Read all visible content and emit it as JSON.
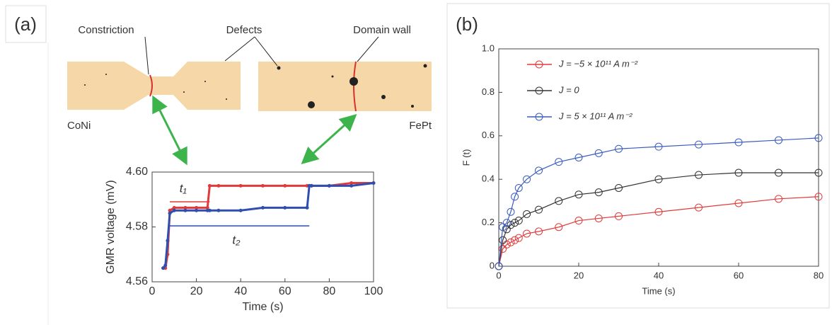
{
  "panels": {
    "a": "(a)",
    "b": "(b)"
  },
  "diagram": {
    "constriction": "Constriction",
    "defects": "Defects",
    "domain_wall": "Domain wall",
    "left_material": "CoNi",
    "right_material": "FePt"
  },
  "chart_data": [
    {
      "type": "line",
      "xlabel": "Time (s)",
      "ylabel": "GMR voltage (mV)",
      "x": [
        5,
        6,
        7,
        8,
        10,
        15,
        20,
        25,
        26,
        30,
        40,
        50,
        60,
        70,
        71,
        72,
        80,
        90,
        100
      ],
      "series": [
        {
          "color": "#e23a3a",
          "values": [
            4.565,
            4.565,
            4.57,
            4.586,
            4.587,
            4.587,
            4.587,
            4.587,
            4.595,
            4.595,
            4.595,
            4.595,
            4.595,
            4.595,
            4.595,
            4.595,
            4.595,
            4.596,
            4.596
          ]
        },
        {
          "color": "#2f4fb0",
          "values": [
            4.565,
            4.566,
            4.575,
            4.585,
            4.586,
            4.586,
            4.586,
            4.586,
            4.586,
            4.586,
            4.586,
            4.587,
            4.587,
            4.587,
            4.595,
            4.595,
            4.595,
            4.595,
            4.596
          ]
        }
      ],
      "xlim": [
        0,
        100
      ],
      "xticks": [
        0,
        20,
        40,
        60,
        80,
        100
      ],
      "ylim": [
        4.56,
        4.6
      ],
      "yticks": [
        4.56,
        4.58,
        {
          "value": 4.6,
          "label": "4.60"
        }
      ],
      "annotations": [
        {
          "text": "t₁",
          "color": "#e23a3a"
        },
        {
          "text": "t₂",
          "color": "#2f4fb0"
        }
      ]
    },
    {
      "type": "line",
      "xlabel": "Time (s)",
      "ylabel": "F (t)",
      "x": [
        0,
        1,
        2,
        3,
        4,
        5,
        7,
        10,
        15,
        20,
        25,
        30,
        40,
        50,
        60,
        70,
        80
      ],
      "series": [
        {
          "name": "J = −5 × 10¹¹ A m⁻²",
          "color": "#e23a3a",
          "values": [
            0,
            0.08,
            0.1,
            0.11,
            0.12,
            0.13,
            0.15,
            0.16,
            0.18,
            0.21,
            0.22,
            0.23,
            0.25,
            0.27,
            0.29,
            0.31,
            0.32
          ]
        },
        {
          "name": "J = 0",
          "color": "#333333",
          "values": [
            0,
            0.12,
            0.17,
            0.19,
            0.2,
            0.21,
            0.24,
            0.26,
            0.3,
            0.33,
            0.34,
            0.36,
            0.4,
            0.42,
            0.43,
            0.43,
            0.43
          ]
        },
        {
          "name": "J = 5 × 10¹¹ A m⁻²",
          "color": "#3a5bbf",
          "values": [
            0,
            0.18,
            0.2,
            0.25,
            0.32,
            0.36,
            0.4,
            0.44,
            0.48,
            0.5,
            0.52,
            0.54,
            0.55,
            0.56,
            0.57,
            0.58,
            0.59
          ]
        }
      ],
      "xlim": [
        0,
        80
      ],
      "xticks": [
        0,
        20,
        40,
        60,
        80
      ],
      "ylim": [
        0,
        1
      ],
      "yticks": [
        0,
        0.2,
        0.4,
        0.6,
        0.8,
        {
          "value": 1,
          "label": "1.0"
        }
      ],
      "legend": "upper left"
    }
  ]
}
